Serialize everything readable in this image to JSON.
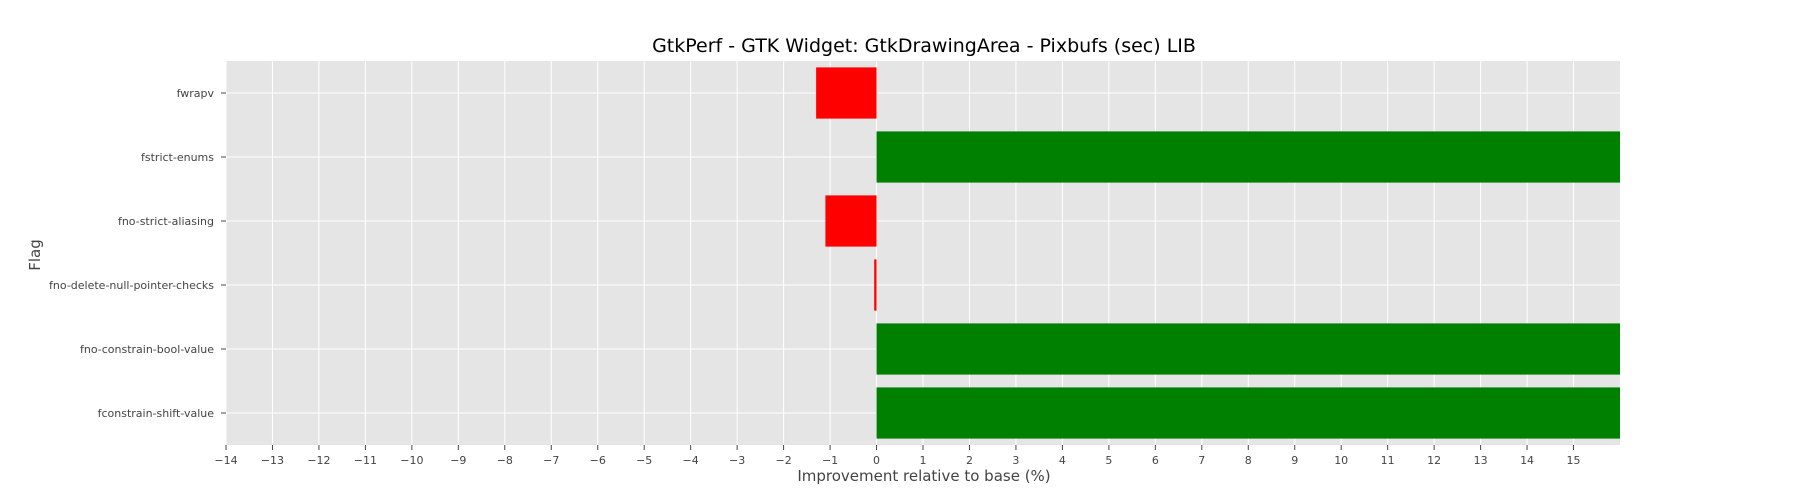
{
  "chart_data": {
    "type": "bar",
    "orientation": "horizontal",
    "title": "GtkPerf - GTK Widget: GtkDrawingArea - Pixbufs (sec) LIB",
    "xlabel": "Improvement relative to base (%)",
    "ylabel": "Flag",
    "xlim": [
      -14,
      16
    ],
    "xticks": [
      -14,
      -13,
      -12,
      -11,
      -10,
      -9,
      -8,
      -7,
      -6,
      -5,
      -4,
      -3,
      -2,
      -1,
      0,
      1,
      2,
      3,
      4,
      5,
      6,
      7,
      8,
      9,
      10,
      11,
      12,
      13,
      14,
      15
    ],
    "categories": [
      "fwrapv",
      "fstrict-enums",
      "fno-strict-aliasing",
      "fno-delete-null-pointer-checks",
      "fno-constrain-bool-value",
      "fconstrain-shift-value"
    ],
    "values": [
      -1.3,
      16,
      -1.1,
      -0.05,
      16,
      16
    ],
    "colors": {
      "positive": "#008000",
      "negative": "#ff0000",
      "background": "#e5e5e5"
    },
    "grid": true
  }
}
